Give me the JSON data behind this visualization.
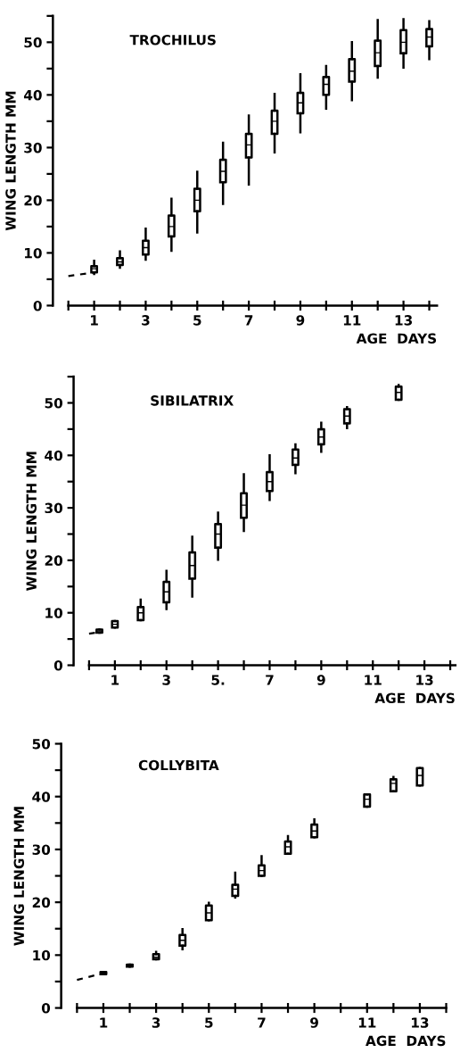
{
  "chart_data": [
    {
      "type": "box",
      "title": "TROCHILUS",
      "xlabel": "AGE  DAYS",
      "ylabel": "WING LENGTH MM",
      "color": "#000000",
      "x": [
        1,
        2,
        3,
        4,
        5,
        6,
        7,
        8,
        9,
        10,
        11,
        12,
        13,
        14
      ],
      "boxes": [
        {
          "low": 6,
          "q1": 6.3,
          "median": 7,
          "q3": 7.5,
          "high": 8.5
        },
        {
          "low": 7.2,
          "q1": 7.7,
          "median": 8.3,
          "q3": 9,
          "high": 10.3
        },
        {
          "low": 8.7,
          "q1": 9.7,
          "median": 11,
          "q3": 12.3,
          "high": 14.6
        },
        {
          "low": 10.4,
          "q1": 13.1,
          "median": 15,
          "q3": 17.1,
          "high": 20.3
        },
        {
          "low": 13.9,
          "q1": 17.9,
          "median": 20,
          "q3": 22.2,
          "high": 25.4
        },
        {
          "low": 19.3,
          "q1": 23.4,
          "median": 25.5,
          "q3": 27.7,
          "high": 30.9
        },
        {
          "low": 23,
          "q1": 28.1,
          "median": 30.5,
          "q3": 32.6,
          "high": 36.1
        },
        {
          "low": 29.1,
          "q1": 32.6,
          "median": 35,
          "q3": 37,
          "high": 40.2
        },
        {
          "low": 32.9,
          "q1": 36.5,
          "median": 38.5,
          "q3": 40.4,
          "high": 43.9
        },
        {
          "low": 37.4,
          "q1": 40,
          "median": 42,
          "q3": 43.4,
          "high": 45.5
        },
        {
          "low": 39,
          "q1": 42.5,
          "median": 44.5,
          "q3": 46.8,
          "high": 50
        },
        {
          "low": 43.3,
          "q1": 45.5,
          "median": 48,
          "q3": 50.3,
          "high": 54.2
        },
        {
          "low": 45.2,
          "q1": 47.9,
          "median": 50,
          "q3": 52.3,
          "high": 54.4
        },
        {
          "low": 46.8,
          "q1": 49.2,
          "median": 51,
          "q3": 52.5,
          "high": 54
        }
      ],
      "series": [
        {
          "type": "line",
          "x": [
            0,
            1
          ],
          "values": [
            5.6,
            6.3
          ],
          "color": "#000000",
          "line_style": "dashed"
        }
      ],
      "xlim": [
        -0.6,
        14.3
      ],
      "ylim": [
        0,
        55
      ],
      "xticks": [
        {
          "value": 0,
          "label": null
        },
        1,
        {
          "value": 2,
          "label": null
        },
        3,
        {
          "value": 4,
          "label": null
        },
        5,
        {
          "value": 6,
          "label": null
        },
        7,
        {
          "value": 8,
          "label": null
        },
        9,
        {
          "value": 10,
          "label": null
        },
        11,
        {
          "value": 12,
          "label": null
        },
        13,
        {
          "value": 14,
          "label": null
        }
      ],
      "yticks": [
        0,
        {
          "value": 5,
          "label": null
        },
        10,
        {
          "value": 15,
          "label": null
        },
        20,
        {
          "value": 25,
          "label": null
        },
        30,
        {
          "value": 35,
          "label": null
        },
        40,
        {
          "value": 45,
          "label": null
        },
        50,
        {
          "value": 55,
          "label": null
        }
      ]
    },
    {
      "type": "box",
      "title": "SIBILATRIX",
      "xlabel": "AGE  DAYS",
      "ylabel": "WING LENGTH MM",
      "color": "#000000",
      "x": [
        0.4,
        1,
        2,
        3,
        4,
        5,
        6,
        7,
        8,
        9,
        10,
        12
      ],
      "boxes": [
        {
          "low": 6.2,
          "q1": 6.2,
          "median": 6.4,
          "q3": 6.8,
          "high": 6.8
        },
        {
          "low": 7.2,
          "q1": 7.2,
          "median": 7.8,
          "q3": 8.4,
          "high": 8.4
        },
        {
          "low": 8.6,
          "q1": 8.6,
          "median": 10,
          "q3": 11.1,
          "high": 12.5
        },
        {
          "low": 10.7,
          "q1": 12,
          "median": 14,
          "q3": 15.9,
          "high": 18
        },
        {
          "low": 13.1,
          "q1": 16.5,
          "median": 19,
          "q3": 21.5,
          "high": 24.5
        },
        {
          "low": 20.1,
          "q1": 22.4,
          "median": 25,
          "q3": 26.9,
          "high": 29.1
        },
        {
          "low": 25.6,
          "q1": 28.1,
          "median": 30.5,
          "q3": 32.8,
          "high": 36.4
        },
        {
          "low": 31.5,
          "q1": 33.2,
          "median": 35,
          "q3": 36.8,
          "high": 40
        },
        {
          "low": 36.6,
          "q1": 38.2,
          "median": 39.5,
          "q3": 41.1,
          "high": 42.1
        },
        {
          "low": 40.7,
          "q1": 42.1,
          "median": 43.5,
          "q3": 45,
          "high": 46.2
        },
        {
          "low": 45.2,
          "q1": 46.1,
          "median": 47.5,
          "q3": 48.8,
          "high": 49.2
        },
        {
          "low": 50.6,
          "q1": 50.6,
          "median": 52,
          "q3": 53.1,
          "high": 53.4
        }
      ],
      "series": [
        {
          "type": "line",
          "x": [
            0,
            0.4
          ],
          "values": [
            6.0,
            6.3
          ],
          "color": "#000000",
          "line_style": "dashed"
        }
      ],
      "xlim": [
        -0.6,
        14.2
      ],
      "ylim": [
        0,
        55
      ],
      "xticks": [
        {
          "value": 0,
          "label": null
        },
        1,
        {
          "value": 2,
          "label": null
        },
        3,
        {
          "value": 4,
          "label": null
        },
        {
          "value": 5,
          "label": "5."
        },
        {
          "value": 6,
          "label": null
        },
        7,
        {
          "value": 8,
          "label": null
        },
        9,
        {
          "value": 10,
          "label": null
        },
        11,
        {
          "value": 12,
          "label": null
        },
        13,
        {
          "value": 14,
          "label": null
        }
      ],
      "yticks": [
        0,
        {
          "value": 5,
          "label": null
        },
        10,
        {
          "value": 15,
          "label": null
        },
        20,
        {
          "value": 25,
          "label": null
        },
        30,
        {
          "value": 35,
          "label": null
        },
        40,
        {
          "value": 45,
          "label": null
        },
        50,
        {
          "value": 55,
          "label": null
        }
      ]
    },
    {
      "type": "box",
      "title": "COLLYBITA",
      "xlabel": "AGE  DAYS",
      "ylabel": "WING LENGTH MM",
      "color": "#000000",
      "x": [
        1,
        2,
        3,
        4,
        5,
        6,
        7,
        8,
        9,
        11,
        12,
        13
      ],
      "boxes": [
        {
          "low": 6.4,
          "q1": 6.4,
          "median": 6.6,
          "q3": 6.8,
          "high": 6.8
        },
        {
          "low": 7.8,
          "q1": 7.8,
          "median": 8,
          "q3": 8.2,
          "high": 8.2
        },
        {
          "low": 9.2,
          "q1": 9.2,
          "median": 9.6,
          "q3": 10.2,
          "high": 10.6
        },
        {
          "low": 11.1,
          "q1": 11.8,
          "median": 12.8,
          "q3": 13.8,
          "high": 14.9
        },
        {
          "low": 16.6,
          "q1": 16.6,
          "median": 18,
          "q3": 19.4,
          "high": 19.9
        },
        {
          "low": 20.9,
          "q1": 21.2,
          "median": 22.5,
          "q3": 23.3,
          "high": 25.6
        },
        {
          "low": 25,
          "q1": 25,
          "median": 26,
          "q3": 27,
          "high": 28.7
        },
        {
          "low": 29.2,
          "q1": 29.2,
          "median": 30.5,
          "q3": 31.5,
          "high": 32.5
        },
        {
          "low": 32.3,
          "q1": 32.3,
          "median": 33.5,
          "q3": 34.7,
          "high": 35.7
        },
        {
          "low": 38.1,
          "q1": 38.1,
          "median": 39.5,
          "q3": 40.4,
          "high": 40.4
        },
        {
          "low": 41,
          "q1": 41,
          "median": 42.5,
          "q3": 43.3,
          "high": 43.7
        },
        {
          "low": 42.1,
          "q1": 42.1,
          "median": 44,
          "q3": 45.4,
          "high": 45.4
        }
      ],
      "series": [
        {
          "type": "line",
          "x": [
            0,
            1
          ],
          "values": [
            5.3,
            6.6
          ],
          "color": "#000000",
          "line_style": "dashed"
        }
      ],
      "xlim": [
        -0.6,
        14
      ],
      "ylim": [
        0,
        50
      ],
      "xticks": [
        {
          "value": 0,
          "label": null
        },
        1,
        {
          "value": 2,
          "label": null
        },
        3,
        {
          "value": 4,
          "label": null
        },
        5,
        {
          "value": 6,
          "label": null
        },
        7,
        {
          "value": 8,
          "label": null
        },
        9,
        {
          "value": 10,
          "label": null
        },
        11,
        {
          "value": 12,
          "label": null
        },
        13,
        {
          "value": 14,
          "label": null
        }
      ],
      "yticks": [
        0,
        {
          "value": 5,
          "label": null
        },
        10,
        {
          "value": 15,
          "label": null
        },
        20,
        {
          "value": 25,
          "label": null
        },
        30,
        {
          "value": 35,
          "label": null
        },
        40,
        {
          "value": 45,
          "label": null
        },
        50
      ]
    }
  ]
}
